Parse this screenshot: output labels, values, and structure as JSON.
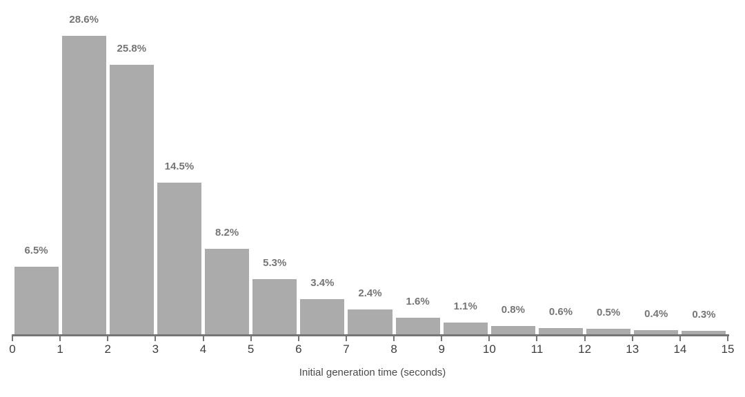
{
  "chart_data": {
    "type": "bar",
    "subtype": "histogram",
    "title": "",
    "xlabel": "Initial generation time (seconds)",
    "ylabel": "",
    "bin_edges": [
      0,
      1,
      2,
      3,
      4,
      5,
      6,
      7,
      8,
      9,
      10,
      11,
      12,
      13,
      14,
      15
    ],
    "x_tick_labels": [
      "0",
      "1",
      "2",
      "3",
      "4",
      "5",
      "6",
      "7",
      "8",
      "9",
      "10",
      "11",
      "12",
      "13",
      "14",
      "15"
    ],
    "values": [
      6.5,
      28.6,
      25.8,
      14.5,
      8.2,
      5.3,
      3.4,
      2.4,
      1.6,
      1.1,
      0.8,
      0.6,
      0.5,
      0.4,
      0.3
    ],
    "bar_labels": [
      "6.5%",
      "28.6%",
      "25.8%",
      "14.5%",
      "8.2%",
      "5.3%",
      "3.4%",
      "2.4%",
      "1.6%",
      "1.1%",
      "0.8%",
      "0.6%",
      "0.5%",
      "0.4%",
      "0.3%"
    ],
    "xlim": [
      0,
      15
    ],
    "ylim": [
      0,
      30
    ],
    "grid": false,
    "legend_position": "none",
    "bar_color": "#ababab",
    "bar_label_color": "#757575",
    "axis_color": "#757575",
    "tick_label_color": "#3d3d3d",
    "xlabel_color": "#4a4a4a",
    "background_color": "#ffffff"
  }
}
